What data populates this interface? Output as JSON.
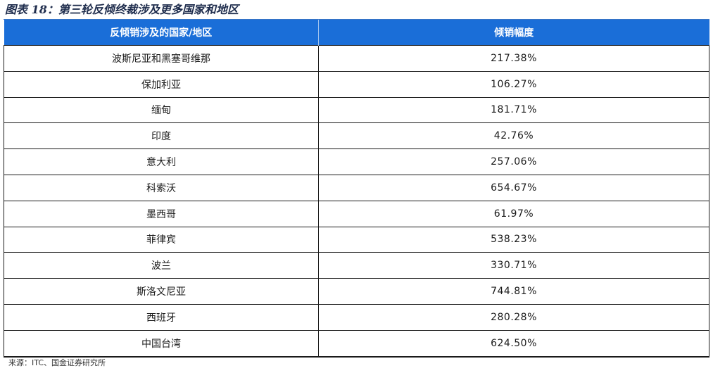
{
  "title": "图表 18：第三轮反倾终裁涉及更多国家和地区",
  "table": {
    "headers": [
      "反倾销涉及的国家/地区",
      "倾销幅度"
    ],
    "rows": [
      {
        "region": "波斯尼亚和黑塞哥维那",
        "margin": "217.38%"
      },
      {
        "region": "保加利亚",
        "margin": "106.27%"
      },
      {
        "region": "缅甸",
        "margin": "181.71%"
      },
      {
        "region": "印度",
        "margin": "42.76%"
      },
      {
        "region": "意大利",
        "margin": "257.06%"
      },
      {
        "region": "科索沃",
        "margin": "654.67%"
      },
      {
        "region": "墨西哥",
        "margin": "61.97%"
      },
      {
        "region": "菲律宾",
        "margin": "538.23%"
      },
      {
        "region": "波兰",
        "margin": "330.71%"
      },
      {
        "region": "斯洛文尼亚",
        "margin": "744.81%"
      },
      {
        "region": "西班牙",
        "margin": "280.28%"
      },
      {
        "region": "中国台湾",
        "margin": "624.50%"
      }
    ]
  },
  "source": "来源：ITC、国金证券研究所"
}
